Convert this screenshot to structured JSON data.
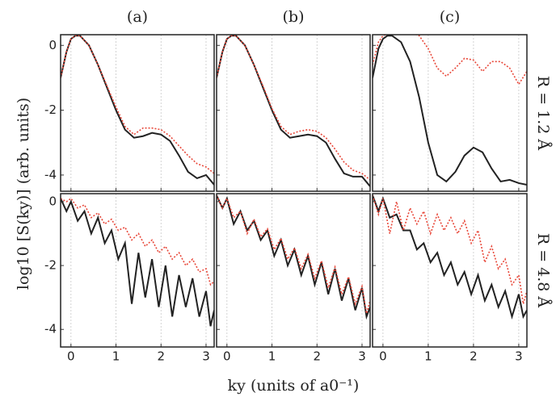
{
  "figure": {
    "ylabel": "log10 [S(ky)] (arb. units)",
    "xlabel": "ky (units of a0⁻¹)"
  },
  "chart_data": [
    {
      "type": "line",
      "title": "(a)",
      "x": [
        -0.23,
        -0.1,
        0,
        0.1,
        0.2,
        0.4,
        0.6,
        0.8,
        1.0,
        1.2,
        1.4,
        1.6,
        1.8,
        2.0,
        2.2,
        2.4,
        2.6,
        2.8,
        3.0,
        3.18
      ],
      "series": [
        {
          "color": "#222222",
          "style": "solid",
          "values": [
            -1.0,
            -0.2,
            0.2,
            0.3,
            0.3,
            0.0,
            -0.6,
            -1.3,
            -2.0,
            -2.6,
            -2.85,
            -2.8,
            -2.7,
            -2.75,
            -2.95,
            -3.4,
            -3.9,
            -4.1,
            -4.0,
            -4.3
          ]
        },
        {
          "color": "#e8483a",
          "style": "dotted",
          "values": [
            -1.0,
            -0.2,
            0.2,
            0.3,
            0.3,
            0.0,
            -0.6,
            -1.25,
            -1.9,
            -2.5,
            -2.75,
            -2.55,
            -2.55,
            -2.6,
            -2.8,
            -3.1,
            -3.4,
            -3.65,
            -3.75,
            -3.95
          ]
        }
      ],
      "xlim": [
        -0.23,
        3.18
      ],
      "ylim": [
        -4.5,
        0.33
      ],
      "xticks": [
        0,
        1,
        2,
        3
      ],
      "yticks": [
        0,
        -2,
        -4
      ],
      "xtick_labels": false,
      "ytick_labels": true,
      "grid": true
    },
    {
      "type": "line",
      "title": "(b)",
      "x": [
        -0.23,
        -0.1,
        0,
        0.1,
        0.2,
        0.4,
        0.6,
        0.8,
        1.0,
        1.2,
        1.4,
        1.6,
        1.8,
        2.0,
        2.2,
        2.4,
        2.6,
        2.8,
        3.0,
        3.18
      ],
      "series": [
        {
          "color": "#222222",
          "style": "solid",
          "values": [
            -1.0,
            -0.2,
            0.2,
            0.3,
            0.3,
            0.0,
            -0.6,
            -1.3,
            -2.0,
            -2.6,
            -2.85,
            -2.8,
            -2.75,
            -2.8,
            -3.0,
            -3.5,
            -3.95,
            -4.05,
            -4.05,
            -4.35
          ]
        },
        {
          "color": "#e8483a",
          "style": "dotted",
          "values": [
            -1.0,
            -0.2,
            0.2,
            0.3,
            0.3,
            0.0,
            -0.6,
            -1.25,
            -1.95,
            -2.5,
            -2.75,
            -2.65,
            -2.6,
            -2.65,
            -2.85,
            -3.2,
            -3.6,
            -3.85,
            -3.95,
            -4.15
          ]
        }
      ],
      "xlim": [
        -0.23,
        3.18
      ],
      "ylim": [
        -4.5,
        0.33
      ],
      "xticks": [
        0,
        1,
        2,
        3
      ],
      "yticks": [
        0,
        -2,
        -4
      ],
      "xtick_labels": false,
      "ytick_labels": false,
      "grid": true
    },
    {
      "type": "line",
      "title": "(c)",
      "annotation": "R = 1.2 Å",
      "x": [
        -0.23,
        -0.1,
        0,
        0.1,
        0.2,
        0.4,
        0.6,
        0.8,
        1.0,
        1.2,
        1.4,
        1.6,
        1.8,
        2.0,
        2.2,
        2.4,
        2.6,
        2.8,
        3.0,
        3.18
      ],
      "series": [
        {
          "color": "#222222",
          "style": "solid",
          "values": [
            -1.0,
            -0.1,
            0.2,
            0.3,
            0.3,
            0.1,
            -0.5,
            -1.6,
            -3.0,
            -4.0,
            -4.2,
            -3.9,
            -3.4,
            -3.15,
            -3.3,
            -3.8,
            -4.2,
            -4.15,
            -4.25,
            -4.3
          ]
        },
        {
          "color": "#e8483a",
          "style": "dotted",
          "values": [
            -0.6,
            0.1,
            0.3,
            0.35,
            0.4,
            0.4,
            0.4,
            0.3,
            -0.1,
            -0.7,
            -0.95,
            -0.7,
            -0.4,
            -0.45,
            -0.8,
            -0.5,
            -0.5,
            -0.7,
            -1.2,
            -0.8
          ]
        }
      ],
      "xlim": [
        -0.23,
        3.18
      ],
      "ylim": [
        -4.5,
        0.33
      ],
      "xticks": [
        0,
        1,
        2,
        3
      ],
      "yticks": [
        0,
        -2,
        -4
      ],
      "xtick_labels": false,
      "ytick_labels": false,
      "grid": true
    },
    {
      "type": "line",
      "x": [
        -0.23,
        -0.1,
        0,
        0.15,
        0.3,
        0.45,
        0.6,
        0.75,
        0.9,
        1.05,
        1.2,
        1.35,
        1.5,
        1.65,
        1.8,
        1.95,
        2.1,
        2.25,
        2.4,
        2.55,
        2.7,
        2.85,
        3.0,
        3.1,
        3.18
      ],
      "series": [
        {
          "color": "#222222",
          "style": "solid",
          "values": [
            0.1,
            -0.3,
            0.0,
            -0.6,
            -0.3,
            -1.0,
            -0.5,
            -1.3,
            -0.9,
            -1.8,
            -1.3,
            -3.2,
            -1.6,
            -3.0,
            -1.8,
            -3.3,
            -2.0,
            -3.6,
            -2.3,
            -3.3,
            -2.4,
            -3.6,
            -2.8,
            -3.9,
            -3.4
          ]
        },
        {
          "color": "#e8483a",
          "style": "dotted",
          "values": [
            0.1,
            0.0,
            0.1,
            -0.2,
            -0.1,
            -0.5,
            -0.35,
            -0.7,
            -0.55,
            -0.9,
            -0.8,
            -1.2,
            -1.0,
            -1.4,
            -1.2,
            -1.6,
            -1.4,
            -1.8,
            -1.6,
            -2.0,
            -1.8,
            -2.2,
            -2.1,
            -2.6,
            -2.5
          ]
        }
      ],
      "xlim": [
        -0.23,
        3.18
      ],
      "ylim": [
        -4.55,
        0.25
      ],
      "xticks": [
        0,
        1,
        2,
        3
      ],
      "yticks": [
        0,
        -2,
        -4
      ],
      "xtick_labels": true,
      "ytick_labels": true,
      "grid": true
    },
    {
      "type": "line",
      "x": [
        -0.23,
        -0.1,
        0,
        0.15,
        0.3,
        0.45,
        0.6,
        0.75,
        0.9,
        1.05,
        1.2,
        1.35,
        1.5,
        1.65,
        1.8,
        1.95,
        2.1,
        2.25,
        2.4,
        2.55,
        2.7,
        2.85,
        3.0,
        3.1,
        3.18
      ],
      "series": [
        {
          "color": "#222222",
          "style": "solid",
          "values": [
            0.2,
            -0.2,
            0.1,
            -0.7,
            -0.3,
            -0.9,
            -0.6,
            -1.2,
            -0.9,
            -1.7,
            -1.2,
            -2.0,
            -1.5,
            -2.3,
            -1.7,
            -2.6,
            -1.9,
            -2.9,
            -2.1,
            -3.1,
            -2.4,
            -3.4,
            -2.7,
            -3.6,
            -3.3
          ]
        },
        {
          "color": "#e8483a",
          "style": "dotted",
          "values": [
            0.2,
            -0.2,
            0.1,
            -0.5,
            -0.3,
            -1.0,
            -0.55,
            -1.1,
            -0.85,
            -1.5,
            -1.15,
            -1.8,
            -1.45,
            -2.1,
            -1.65,
            -2.4,
            -1.85,
            -2.7,
            -2.05,
            -2.9,
            -2.35,
            -3.2,
            -2.65,
            -3.5,
            -3.1
          ]
        }
      ],
      "xlim": [
        -0.23,
        3.18
      ],
      "ylim": [
        -4.55,
        0.25
      ],
      "xticks": [
        0,
        1,
        2,
        3
      ],
      "yticks": [
        0,
        -2,
        -4
      ],
      "xtick_labels": true,
      "ytick_labels": false,
      "grid": true
    },
    {
      "type": "line",
      "annotation": "R = 4.8 Å",
      "x": [
        -0.23,
        -0.1,
        0,
        0.15,
        0.3,
        0.45,
        0.6,
        0.75,
        0.9,
        1.05,
        1.2,
        1.35,
        1.5,
        1.65,
        1.8,
        1.95,
        2.1,
        2.25,
        2.4,
        2.55,
        2.7,
        2.85,
        3.0,
        3.1,
        3.18
      ],
      "series": [
        {
          "color": "#222222",
          "style": "solid",
          "values": [
            0.2,
            -0.3,
            0.1,
            -0.5,
            -0.4,
            -0.9,
            -0.9,
            -1.5,
            -1.3,
            -1.9,
            -1.6,
            -2.3,
            -1.9,
            -2.6,
            -2.2,
            -2.9,
            -2.3,
            -3.1,
            -2.6,
            -3.3,
            -2.8,
            -3.6,
            -2.9,
            -3.6,
            -3.4
          ]
        },
        {
          "color": "#e8483a",
          "style": "dotted",
          "values": [
            0.2,
            -0.4,
            0.1,
            -1.0,
            0.0,
            -0.9,
            -0.2,
            -0.7,
            -0.3,
            -1.0,
            -0.4,
            -0.9,
            -0.5,
            -1.0,
            -0.6,
            -1.3,
            -0.9,
            -1.9,
            -1.4,
            -2.1,
            -1.8,
            -2.6,
            -2.3,
            -3.2,
            -2.8
          ]
        }
      ],
      "xlim": [
        -0.23,
        3.18
      ],
      "ylim": [
        -4.55,
        0.25
      ],
      "xticks": [
        0,
        1,
        2,
        3
      ],
      "yticks": [
        0,
        -2,
        -4
      ],
      "xtick_labels": true,
      "ytick_labels": false,
      "grid": true
    }
  ]
}
